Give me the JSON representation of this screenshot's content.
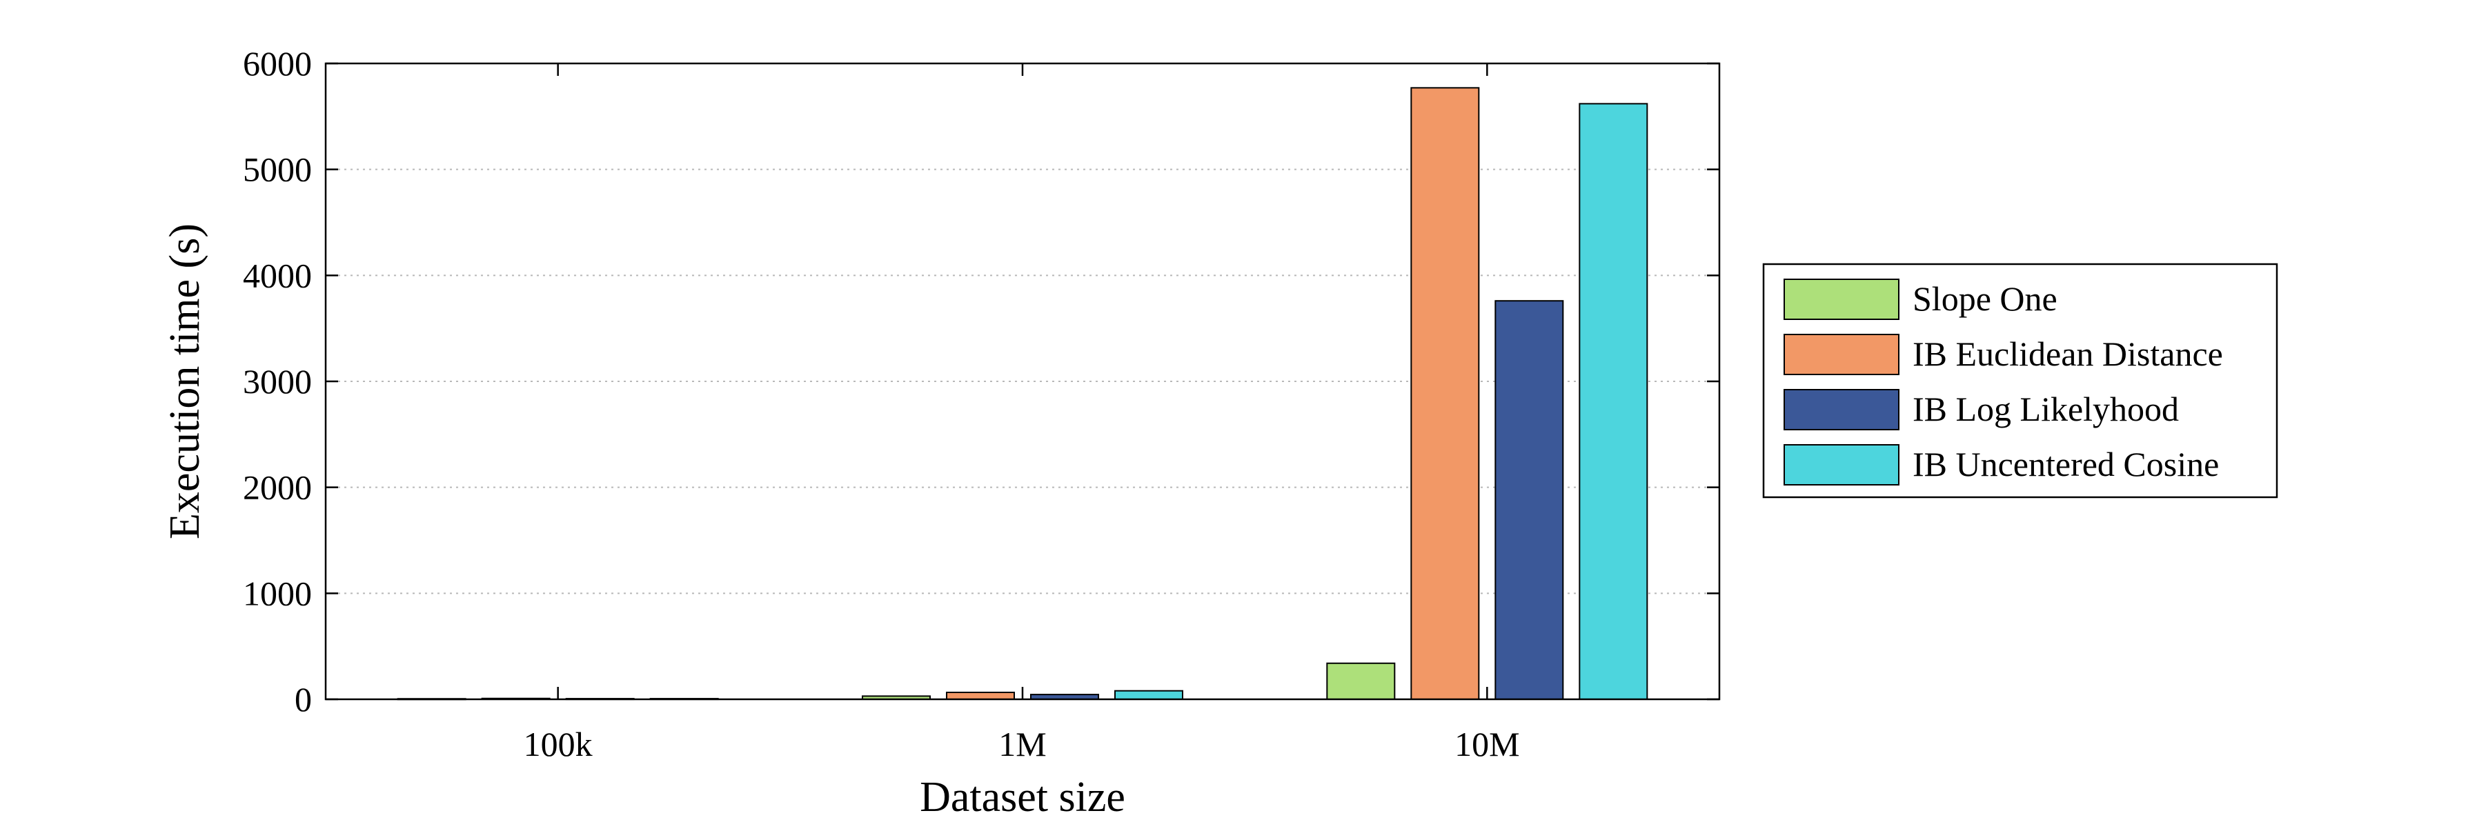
{
  "chart_data": {
    "type": "bar",
    "title": "",
    "xlabel": "Dataset size",
    "ylabel": "Execution time (s)",
    "categories": [
      "100k",
      "1M",
      "10M"
    ],
    "ylim": [
      0,
      6000
    ],
    "yticks": [
      0,
      1000,
      2000,
      3000,
      4000,
      5000,
      6000
    ],
    "grid": "horizontal-dotted",
    "legend_position": "right",
    "series": [
      {
        "name": "Slope One",
        "color": "#ade07a",
        "values": [
          5,
          30,
          340
        ]
      },
      {
        "name": "IB Euclidean Distance",
        "color": "#f29866",
        "values": [
          8,
          65,
          5770
        ]
      },
      {
        "name": "IB Log Likelyhood",
        "color": "#3b5898",
        "values": [
          6,
          45,
          3760
        ]
      },
      {
        "name": "IB Uncentered Cosine",
        "color": "#4dd5dd",
        "values": [
          6,
          80,
          5620
        ]
      }
    ]
  }
}
